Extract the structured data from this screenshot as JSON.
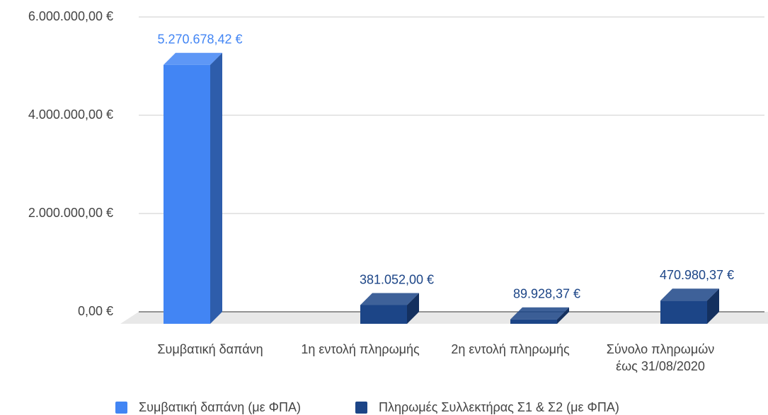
{
  "chart_data": {
    "type": "bar3d",
    "categories": [
      "Συμβατική δαπάνη",
      "1η εντολή πληρωμής",
      "2η εντολή πληρωμής",
      "Σύνολο πληρωμών έως 31/08/2020"
    ],
    "series": [
      {
        "name": "Συμβατική δαπάνη (με ΦΠΑ)",
        "color": "#4285f4",
        "values": [
          5270678.42,
          null,
          null,
          null
        ],
        "value_labels": [
          "5.270.678,42 €",
          null,
          null,
          null
        ]
      },
      {
        "name": "Πληρωμές Συλλεκτήρας Σ1 & Σ2 (με ΦΠΑ)",
        "color": "#1c4587",
        "values": [
          null,
          381052,
          89928.37,
          470980.37
        ],
        "value_labels": [
          null,
          "381.052,00 €",
          "89.928,37 €",
          "470.980,37 €"
        ]
      }
    ],
    "ylim": [
      0,
      6000000
    ],
    "yticks": [
      {
        "value": 0,
        "label": "0,00 €"
      },
      {
        "value": 2000000,
        "label": "2.000.000,00 €"
      },
      {
        "value": 4000000,
        "label": "4.000.000,00 €"
      },
      {
        "value": 6000000,
        "label": "6.000.000,00 €"
      }
    ],
    "grid": true,
    "legend": "bottom"
  }
}
